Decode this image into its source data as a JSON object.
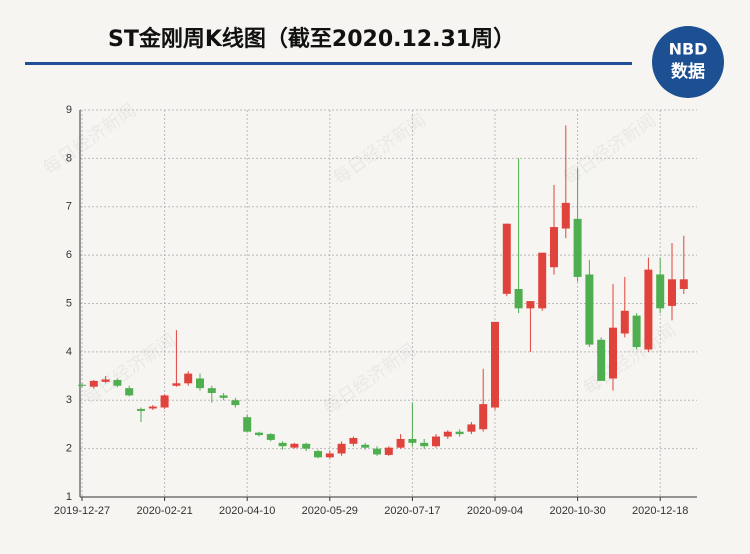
{
  "chart_data": {
    "type": "candlestick",
    "title": "ST金刚周K线图（截至2020.12.31周）",
    "categories": [
      "2019-12-27",
      null,
      null,
      null,
      null,
      null,
      null,
      "2020-02-21",
      null,
      null,
      null,
      null,
      null,
      null,
      "2020-04-10",
      null,
      null,
      null,
      null,
      null,
      null,
      "2020-05-29",
      null,
      null,
      null,
      null,
      null,
      null,
      "2020-07-17",
      null,
      null,
      null,
      null,
      null,
      null,
      "2020-09-04",
      null,
      null,
      null,
      null,
      null,
      null,
      "2020-10-30",
      null,
      null,
      null,
      null,
      null,
      null,
      "2020-12-18",
      null,
      null
    ],
    "open": [
      3.32,
      3.28,
      3.38,
      3.42,
      3.25,
      2.82,
      2.83,
      2.85,
      3.3,
      3.35,
      3.45,
      3.25,
      3.1,
      3.0,
      2.65,
      2.33,
      2.3,
      2.12,
      2.02,
      2.1,
      1.95,
      1.82,
      1.9,
      2.1,
      2.08,
      2.0,
      1.87,
      2.02,
      2.2,
      2.12,
      2.05,
      2.25,
      2.35,
      2.35,
      2.4,
      2.85,
      5.2,
      5.3,
      4.9,
      4.9,
      5.75,
      6.55,
      6.75,
      5.6,
      4.25,
      3.45,
      4.38,
      4.75,
      4.05,
      5.6,
      4.95,
      5.3
    ],
    "high": [
      3.36,
      3.42,
      3.5,
      3.45,
      3.3,
      2.85,
      2.9,
      3.12,
      4.45,
      3.6,
      3.55,
      3.3,
      3.15,
      3.05,
      2.7,
      2.35,
      2.32,
      2.15,
      2.12,
      2.12,
      1.98,
      1.95,
      2.15,
      2.25,
      2.12,
      2.05,
      2.05,
      2.3,
      2.95,
      2.2,
      2.3,
      2.38,
      2.4,
      2.55,
      3.65,
      4.62,
      6.65,
      8.0,
      5.05,
      6.05,
      7.45,
      8.68,
      7.8,
      5.9,
      4.3,
      5.4,
      5.55,
      4.8,
      5.95,
      5.95,
      6.25,
      6.4
    ],
    "low": [
      3.25,
      3.24,
      3.35,
      3.27,
      3.08,
      2.55,
      2.8,
      2.82,
      3.28,
      3.3,
      3.2,
      2.95,
      3.0,
      2.85,
      2.33,
      2.25,
      2.15,
      1.98,
      2.0,
      1.95,
      1.8,
      1.8,
      1.85,
      2.05,
      1.98,
      1.85,
      1.85,
      2.0,
      2.05,
      2.0,
      2.02,
      2.2,
      2.25,
      2.3,
      2.35,
      2.8,
      5.15,
      4.8,
      4.0,
      4.85,
      5.6,
      6.35,
      5.45,
      4.1,
      3.4,
      3.2,
      4.3,
      4.05,
      4.0,
      4.8,
      4.65,
      5.2
    ],
    "close": [
      3.3,
      3.4,
      3.43,
      3.3,
      3.1,
      2.78,
      2.87,
      3.1,
      3.35,
      3.55,
      3.25,
      3.15,
      3.05,
      2.9,
      2.35,
      2.28,
      2.18,
      2.05,
      2.1,
      2.0,
      1.82,
      1.9,
      2.1,
      2.22,
      2.02,
      1.88,
      2.02,
      2.2,
      2.12,
      2.05,
      2.25,
      2.35,
      2.3,
      2.5,
      2.92,
      4.62,
      6.65,
      4.9,
      5.05,
      6.05,
      6.58,
      7.08,
      5.55,
      4.15,
      3.4,
      4.5,
      4.85,
      4.1,
      5.7,
      4.9,
      5.5,
      5.5
    ],
    "up_color": "#e0433c",
    "down_color": "#4fae4f",
    "ylim": [
      1,
      9
    ],
    "yticks": [
      1,
      2,
      3,
      4,
      5,
      6,
      7,
      8,
      9
    ],
    "grid": true
  },
  "logo": {
    "line1": "NBD",
    "line2": "数据"
  },
  "watermark": "每日经济新闻"
}
